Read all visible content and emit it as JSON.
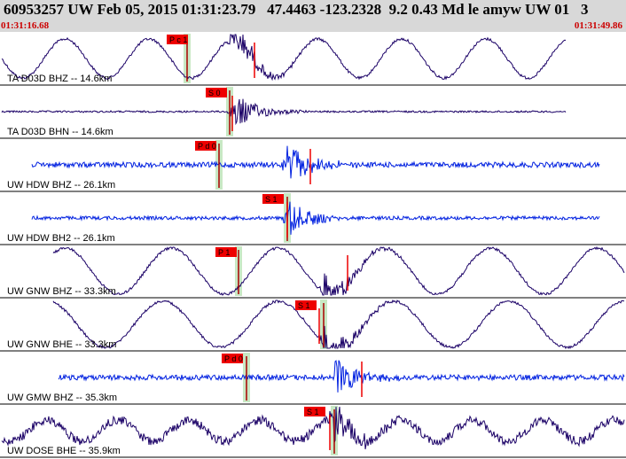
{
  "header": {
    "title": "60953257 UW Feb 05, 2015 01:31:23.79   47.4463 -123.2328  9.2 0.43 Md le amyw UW 01   3",
    "start_time": "01:31:16.68",
    "end_time": "01:31:49.86"
  },
  "colors": {
    "header_bg": "#d8d8d8",
    "time_text": "#cc0000",
    "trace_dark": "#1a0066",
    "trace_blue": "#0020e0",
    "pick_window": "#c8e8c4",
    "pick_tag": "#ee0000",
    "pick_line": "#aa0000"
  },
  "traces": [
    {
      "label": "TA D03D BHZ -- 14.6km",
      "style": "lp",
      "color": "dark",
      "pick": "P c 1"
    },
    {
      "label": "TA D03D BHN -- 14.6km",
      "style": "burst",
      "color": "dark",
      "pick": "S 0"
    },
    {
      "label": "UW HDW BHZ -- 26.1km",
      "style": "noise",
      "color": "blue",
      "pick": "P d 0"
    },
    {
      "label": "UW HDW BH2 -- 26.1km",
      "style": "noise",
      "color": "blue",
      "pick": "S 1"
    },
    {
      "label": "UW GNW BHZ -- 33.3km",
      "style": "lp",
      "color": "dark",
      "pick": "P 1"
    },
    {
      "label": "UW GNW BHE -- 33.3km",
      "style": "lp",
      "color": "dark",
      "pick": "S 1"
    },
    {
      "label": "UW GMW BHZ -- 35.3km",
      "style": "noise",
      "color": "blue",
      "pick": "P d 0"
    },
    {
      "label": "UW DOSE BHE -- 35.9km",
      "style": "noisy-lp",
      "color": "dark",
      "pick": "S 1"
    }
  ]
}
